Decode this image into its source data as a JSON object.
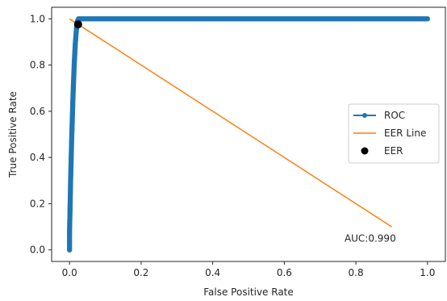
{
  "chart_data": {
    "type": "line",
    "title": "",
    "xlabel": "False Positive Rate",
    "ylabel": "True Positive Rate",
    "xlim": [
      -0.05,
      1.05
    ],
    "ylim": [
      -0.05,
      1.05
    ],
    "xticks": [
      0.0,
      0.2,
      0.4,
      0.6,
      0.8,
      1.0
    ],
    "yticks": [
      0.0,
      0.2,
      0.4,
      0.6,
      0.8,
      1.0
    ],
    "xtick_labels": [
      "0.0",
      "0.2",
      "0.4",
      "0.6",
      "0.8",
      "1.0"
    ],
    "ytick_labels": [
      "0.0",
      "0.2",
      "0.4",
      "0.6",
      "0.8",
      "1.0"
    ],
    "grid": false,
    "legend_position": "center-right",
    "series": [
      {
        "name": "ROC",
        "type": "line-marker",
        "color": "#1f77b4",
        "x": [
          0.0,
          0.0,
          0.001,
          0.002,
          0.003,
          0.004,
          0.005,
          0.006,
          0.007,
          0.008,
          0.009,
          0.01,
          0.011,
          0.012,
          0.013,
          0.014,
          0.015,
          0.016,
          0.017,
          0.018,
          0.019,
          0.02,
          0.021,
          0.022,
          0.025,
          0.05,
          0.1,
          0.15,
          0.2,
          0.25,
          0.3,
          0.35,
          0.4,
          0.45,
          0.5,
          0.55,
          0.6,
          0.65,
          0.7,
          0.75,
          0.8,
          0.85,
          0.9,
          0.95,
          1.0
        ],
        "y": [
          0.0,
          0.08,
          0.15,
          0.22,
          0.3,
          0.36,
          0.42,
          0.48,
          0.53,
          0.58,
          0.63,
          0.68,
          0.72,
          0.76,
          0.8,
          0.83,
          0.86,
          0.89,
          0.91,
          0.93,
          0.95,
          0.97,
          0.98,
          0.99,
          1.0,
          1.0,
          1.0,
          1.0,
          1.0,
          1.0,
          1.0,
          1.0,
          1.0,
          1.0,
          1.0,
          1.0,
          1.0,
          1.0,
          1.0,
          1.0,
          1.0,
          1.0,
          1.0,
          1.0,
          1.0
        ]
      },
      {
        "name": "EER Line",
        "type": "line",
        "color": "#ff7f0e",
        "x": [
          0.0,
          0.9
        ],
        "y": [
          1.0,
          0.1
        ]
      },
      {
        "name": "EER",
        "type": "scatter",
        "color": "#000000",
        "x": [
          0.024
        ],
        "y": [
          0.976
        ]
      }
    ],
    "annotation": {
      "text": "AUC:0.990",
      "x": 0.84,
      "y": 0.05
    }
  }
}
